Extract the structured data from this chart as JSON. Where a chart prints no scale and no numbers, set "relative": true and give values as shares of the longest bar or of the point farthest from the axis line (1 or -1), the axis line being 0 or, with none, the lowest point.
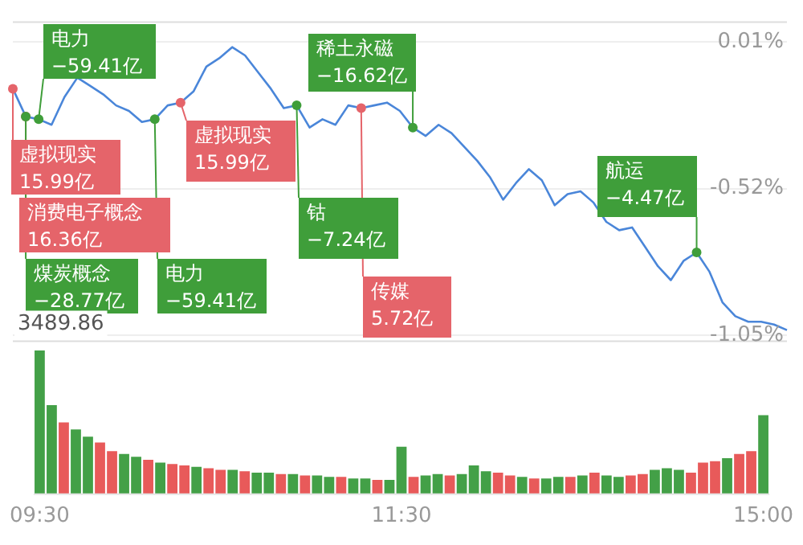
{
  "chart_data": [
    {
      "type": "line",
      "categories": [
        null,
        null,
        null,
        null,
        null,
        null,
        null,
        null,
        null,
        null,
        null,
        null,
        null,
        null,
        null,
        null,
        null,
        null,
        null,
        null,
        null,
        null,
        null,
        null,
        null,
        null,
        null,
        null,
        null,
        null,
        null,
        null,
        null,
        null,
        null,
        null,
        null,
        null,
        null,
        null,
        null,
        null,
        null,
        null,
        null,
        null,
        null,
        null,
        null,
        null,
        null,
        null,
        null,
        null,
        null,
        null,
        null,
        null,
        null,
        null,
        null
      ],
      "series": [
        {
          "color": "#4a86d9",
          "values": [
            -0.16,
            -0.26,
            -0.27,
            -0.29,
            -0.19,
            -0.12,
            -0.15,
            -0.18,
            -0.22,
            -0.24,
            -0.28,
            -0.27,
            -0.22,
            -0.21,
            -0.17,
            -0.08,
            -0.05,
            -0.01,
            -0.04,
            -0.1,
            -0.16,
            -0.23,
            -0.22,
            -0.3,
            -0.27,
            -0.29,
            -0.22,
            -0.23,
            -0.22,
            -0.21,
            -0.24,
            -0.3,
            -0.33,
            -0.29,
            -0.32,
            -0.37,
            -0.42,
            -0.48,
            -0.56,
            -0.5,
            -0.45,
            -0.49,
            -0.58,
            -0.54,
            -0.53,
            -0.57,
            -0.64,
            -0.67,
            -0.66,
            -0.73,
            -0.8,
            -0.85,
            -0.78,
            -0.75,
            -0.82,
            -0.93,
            -0.98,
            -1.0,
            -1.0,
            -1.01,
            -1.03
          ]
        }
      ],
      "ylim": [
        -1.07,
        0.08
      ],
      "yticks": [
        {
          "value": 0.01,
          "label": "0.01%"
        },
        {
          "value": -0.52,
          "label": "-0.52%"
        },
        {
          "value": -1.05,
          "label": "-1.05%"
        }
      ],
      "grid": "y",
      "tick_labels": "y",
      "marker": "none",
      "line_style": "solid",
      "annotations": [
        "虚拟现实\n15.99亿",
        "电力\n−59.41亿",
        "消费电子概念\n16.36亿",
        "煤炭概念\n−28.77亿",
        "电力\n−59.41亿",
        "虚拟现实\n15.99亿",
        "钴\n−7.24亿",
        "传媒\n5.72亿",
        "稀土永磁\n−16.62亿",
        "航运\n−4.47亿",
        "3489.86"
      ]
    },
    {
      "type": "bar",
      "relative": true,
      "categories": [
        "09:30",
        null,
        null,
        null,
        null,
        null,
        null,
        null,
        null,
        null,
        null,
        null,
        null,
        null,
        null,
        null,
        null,
        null,
        null,
        null,
        null,
        null,
        null,
        null,
        null,
        null,
        null,
        null,
        null,
        null,
        "11:30",
        null,
        null,
        null,
        null,
        null,
        null,
        null,
        null,
        null,
        null,
        null,
        null,
        null,
        null,
        null,
        null,
        null,
        null,
        null,
        null,
        null,
        null,
        null,
        null,
        null,
        null,
        null,
        null,
        null,
        "15:00"
      ],
      "values": [
        1,
        0.62,
        0.5,
        0.45,
        0.4,
        0.36,
        0.3,
        0.28,
        0.26,
        0.24,
        0.22,
        0.21,
        0.2,
        0.19,
        0.18,
        0.17,
        0.17,
        0.16,
        0.15,
        0.15,
        0.14,
        0.14,
        0.13,
        0.13,
        0.12,
        0.12,
        0.11,
        0.11,
        0.1,
        0.1,
        0.33,
        0.12,
        0.13,
        0.14,
        0.13,
        0.14,
        0.2,
        0.16,
        0.15,
        0.13,
        0.12,
        0.11,
        0.11,
        0.12,
        0.12,
        0.13,
        0.15,
        0.13,
        0.12,
        0.13,
        0.14,
        0.17,
        0.18,
        0.17,
        0.15,
        0.22,
        0.23,
        0.25,
        0.28,
        0.3,
        0.55
      ],
      "colors": [
        "#43a047",
        "#43a047",
        "#e85a5a",
        "#43a047",
        "#43a047",
        "#e85a5a",
        "#e85a5a",
        "#43a047",
        "#43a047",
        "#e85a5a",
        "#43a047",
        "#e85a5a",
        "#e85a5a",
        "#43a047",
        "#e85a5a",
        "#e85a5a",
        "#43a047",
        "#e85a5a",
        "#43a047",
        "#43a047",
        "#e85a5a",
        "#43a047",
        "#e85a5a",
        "#43a047",
        "#43a047",
        "#e85a5a",
        "#43a047",
        "#43a047",
        "#e85a5a",
        "#43a047",
        "#43a047",
        "#e85a5a",
        "#43a047",
        "#43a047",
        "#e85a5a",
        "#43a047",
        "#43a047",
        "#43a047",
        "#e85a5a",
        "#e85a5a",
        "#43a047",
        "#e85a5a",
        "#43a047",
        "#43a047",
        "#e85a5a",
        "#43a047",
        "#e85a5a",
        "#43a047",
        "#43a047",
        "#e85a5a",
        "#e85a5a",
        "#43a047",
        "#43a047",
        "#43a047",
        "#e85a5a",
        "#e85a5a",
        "#e85a5a",
        "#43a047",
        "#e85a5a",
        "#e85a5a",
        "#43a047"
      ]
    }
  ]
}
